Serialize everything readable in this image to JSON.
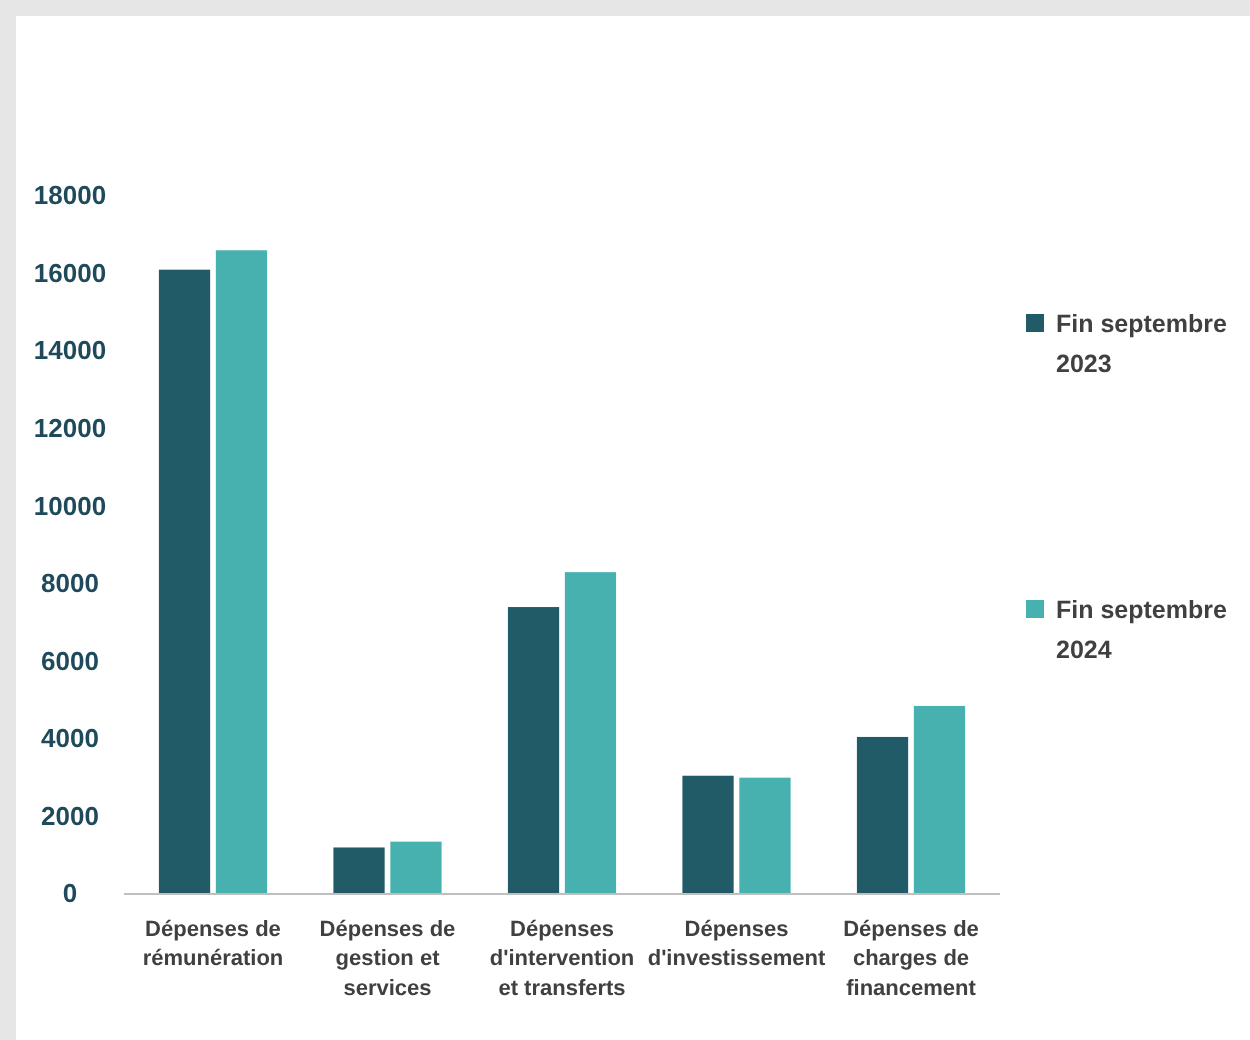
{
  "chart_data": {
    "type": "bar",
    "categories": [
      "Dépenses de rémunération",
      "Dépenses de gestion et services",
      "Dépenses d'intervention et transferts",
      "Dépenses d'investissement",
      "Dépenses de charges de financement"
    ],
    "series": [
      {
        "name": "Fin septembre 2023",
        "color": "#225b68",
        "values": [
          16100,
          1200,
          7400,
          3050,
          4050
        ]
      },
      {
        "name": "Fin septembre 2024",
        "color": "#46b1af",
        "values": [
          16600,
          1350,
          8300,
          3000,
          4850
        ]
      }
    ],
    "ylim": [
      0,
      18000
    ],
    "yticks": [
      0,
      2000,
      4000,
      6000,
      8000,
      10000,
      12000,
      14000,
      16000,
      18000
    ],
    "grid": false,
    "legend": "right"
  }
}
